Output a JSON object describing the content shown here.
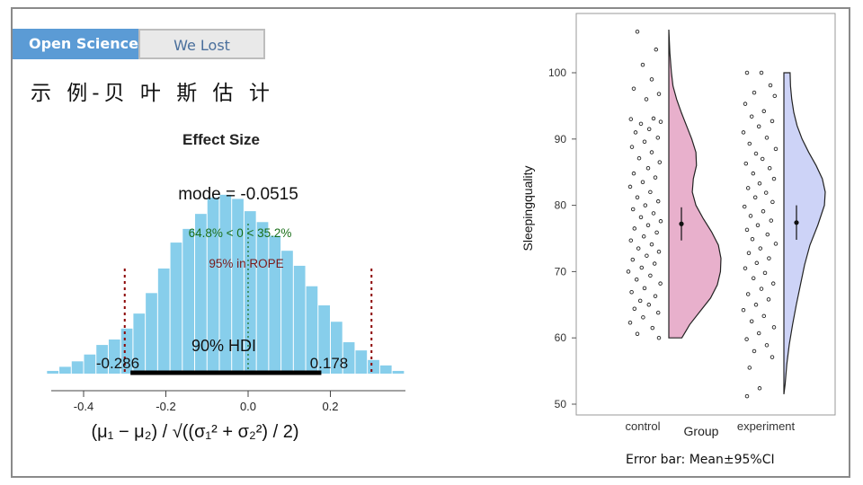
{
  "header": {
    "tab_active": "Open Science",
    "tab_inactive": "We Lost",
    "slide_title": "示 例-贝 叶 斯 估 计"
  },
  "footnote": "Error bar: Mean±95%CI",
  "colors": {
    "tab_active_bg": "#5b9bd5",
    "hist_bar": "#87ceeb",
    "hdi_line": "#000000",
    "rope_line": "#8b0000",
    "control_fill": "#e8b0cc",
    "experiment_fill": "#cdd3f7"
  },
  "chart_data": [
    {
      "type": "bar",
      "title": "Effect Size",
      "annotations": {
        "mode": "mode = -0.0515",
        "direction": "64.8% < 0 < 35.2%",
        "rope": "95% in ROPE",
        "hdi_label": "90% HDI",
        "hdi_low_label": "-0.286",
        "hdi_high_label": "0.178"
      },
      "mode": -0.0515,
      "hdi": [
        -0.286,
        0.178
      ],
      "rope": [
        -0.3,
        0.3
      ],
      "comp_value": 0,
      "xlim": [
        -0.5,
        0.4
      ],
      "x_ticks": [
        "-0.4",
        "-0.2",
        "0.0",
        "0.2"
      ],
      "xlabel": "(μ₁ − μ₂) / √((σ₁² + σ₂²) / 2)",
      "bin_width": 0.03,
      "bin_centers": [
        -0.475,
        -0.445,
        -0.415,
        -0.385,
        -0.355,
        -0.325,
        -0.295,
        -0.265,
        -0.235,
        -0.205,
        -0.175,
        -0.145,
        -0.115,
        -0.085,
        -0.055,
        -0.025,
        0.005,
        0.035,
        0.065,
        0.095,
        0.125,
        0.155,
        0.185,
        0.215,
        0.245,
        0.275,
        0.305,
        0.335,
        0.365
      ],
      "density": [
        0.2,
        0.5,
        0.9,
        1.4,
        2.1,
        2.5,
        3.3,
        4.4,
        5.9,
        7.7,
        9.6,
        10.6,
        11.7,
        12.9,
        13.1,
        12.8,
        11.9,
        11.1,
        10.1,
        9.0,
        7.9,
        6.4,
        5.0,
        3.8,
        2.3,
        1.7,
        1.0,
        0.6,
        0.2
      ]
    },
    {
      "type": "scatter",
      "subtype": "raincloud",
      "xlabel": "Group",
      "ylabel": "Sleepingquality",
      "ylim": [
        50,
        107
      ],
      "y_ticks": [
        50,
        60,
        70,
        80,
        90,
        100
      ],
      "categories": [
        "control",
        "experiment"
      ],
      "groups": [
        {
          "name": "control",
          "mean": 77.2,
          "ci": [
            74.7,
            79.7
          ],
          "density_range": [
            60,
            106.5
          ],
          "density": [
            [
              60,
              0.25
            ],
            [
              62,
              0.4
            ],
            [
              64,
              0.6
            ],
            [
              66,
              0.8
            ],
            [
              68,
              0.93
            ],
            [
              70,
              0.99
            ],
            [
              72,
              1.0
            ],
            [
              74,
              0.95
            ],
            [
              76,
              0.82
            ],
            [
              78,
              0.66
            ],
            [
              80,
              0.52
            ],
            [
              82,
              0.45
            ],
            [
              84,
              0.47
            ],
            [
              86,
              0.53
            ],
            [
              88,
              0.52
            ],
            [
              90,
              0.44
            ],
            [
              92,
              0.34
            ],
            [
              94,
              0.24
            ],
            [
              96,
              0.15
            ],
            [
              98,
              0.08
            ],
            [
              100,
              0.05
            ],
            [
              103,
              0.02
            ],
            [
              106.5,
              0.0
            ]
          ],
          "points": [
            [
              0.3,
              106.2
            ],
            [
              0.82,
              103.5
            ],
            [
              0.45,
              101.2
            ],
            [
              0.7,
              99.0
            ],
            [
              0.2,
              97.6
            ],
            [
              0.9,
              96.8
            ],
            [
              0.55,
              96.0
            ],
            [
              0.75,
              93.1
            ],
            [
              0.12,
              93.0
            ],
            [
              0.95,
              92.6
            ],
            [
              0.4,
              92.3
            ],
            [
              0.63,
              91.5
            ],
            [
              0.25,
              91.0
            ],
            [
              0.87,
              90.2
            ],
            [
              0.5,
              89.6
            ],
            [
              0.15,
              88.8
            ],
            [
              0.7,
              88.0
            ],
            [
              0.35,
              87.1
            ],
            [
              0.92,
              86.5
            ],
            [
              0.6,
              85.6
            ],
            [
              0.2,
              84.8
            ],
            [
              0.8,
              84.2
            ],
            [
              0.45,
              83.5
            ],
            [
              0.1,
              82.8
            ],
            [
              0.66,
              82.0
            ],
            [
              0.3,
              81.2
            ],
            [
              0.88,
              80.6
            ],
            [
              0.52,
              80.0
            ],
            [
              0.18,
              79.4
            ],
            [
              0.75,
              78.8
            ],
            [
              0.4,
              78.2
            ],
            [
              0.95,
              77.6
            ],
            [
              0.6,
              77.0
            ],
            [
              0.22,
              76.5
            ],
            [
              0.84,
              75.9
            ],
            [
              0.48,
              75.3
            ],
            [
              0.12,
              74.7
            ],
            [
              0.7,
              74.1
            ],
            [
              0.33,
              73.5
            ],
            [
              0.9,
              73.0
            ],
            [
              0.56,
              72.4
            ],
            [
              0.17,
              71.8
            ],
            [
              0.78,
              71.2
            ],
            [
              0.42,
              70.6
            ],
            [
              0.05,
              70.0
            ],
            [
              0.66,
              69.4
            ],
            [
              0.28,
              68.8
            ],
            [
              0.94,
              68.2
            ],
            [
              0.5,
              67.5
            ],
            [
              0.14,
              66.9
            ],
            [
              0.8,
              66.3
            ],
            [
              0.38,
              65.6
            ],
            [
              0.62,
              65.0
            ],
            [
              0.22,
              64.4
            ],
            [
              0.88,
              63.8
            ],
            [
              0.46,
              63.1
            ],
            [
              0.1,
              62.3
            ],
            [
              0.72,
              61.5
            ],
            [
              0.3,
              60.6
            ],
            [
              0.9,
              60.0
            ]
          ]
        },
        {
          "name": "experiment",
          "mean": 77.4,
          "ci": [
            74.8,
            80.0
          ],
          "density_range": [
            51.5,
            100
          ],
          "density": [
            [
              51.5,
              0.0
            ],
            [
              53,
              0.03
            ],
            [
              56,
              0.07
            ],
            [
              59,
              0.13
            ],
            [
              62,
              0.21
            ],
            [
              65,
              0.3
            ],
            [
              68,
              0.4
            ],
            [
              71,
              0.5
            ],
            [
              74,
              0.63
            ],
            [
              77,
              0.82
            ],
            [
              80,
              0.98
            ],
            [
              82,
              1.0
            ],
            [
              84,
              0.93
            ],
            [
              86,
              0.78
            ],
            [
              88,
              0.6
            ],
            [
              90,
              0.44
            ],
            [
              92,
              0.32
            ],
            [
              94,
              0.24
            ],
            [
              96,
              0.19
            ],
            [
              98,
              0.16
            ],
            [
              100,
              0.15
            ]
          ],
          "points": [
            [
              0.15,
              100.0
            ],
            [
              0.55,
              100.0
            ],
            [
              0.8,
              98.1
            ],
            [
              0.35,
              97.0
            ],
            [
              0.92,
              96.5
            ],
            [
              0.1,
              95.3
            ],
            [
              0.62,
              94.2
            ],
            [
              0.28,
              93.4
            ],
            [
              0.85,
              92.7
            ],
            [
              0.48,
              91.9
            ],
            [
              0.05,
              91.0
            ],
            [
              0.7,
              90.2
            ],
            [
              0.22,
              89.3
            ],
            [
              0.95,
              88.5
            ],
            [
              0.4,
              87.8
            ],
            [
              0.58,
              87.0
            ],
            [
              0.12,
              86.3
            ],
            [
              0.78,
              85.6
            ],
            [
              0.32,
              84.8
            ],
            [
              0.9,
              84.0
            ],
            [
              0.5,
              83.3
            ],
            [
              0.18,
              82.6
            ],
            [
              0.68,
              81.9
            ],
            [
              0.38,
              81.2
            ],
            [
              0.86,
              80.5
            ],
            [
              0.08,
              79.8
            ],
            [
              0.6,
              79.1
            ],
            [
              0.25,
              78.4
            ],
            [
              0.82,
              77.7
            ],
            [
              0.45,
              77.0
            ],
            [
              0.15,
              76.3
            ],
            [
              0.72,
              75.6
            ],
            [
              0.3,
              74.9
            ],
            [
              0.95,
              74.2
            ],
            [
              0.52,
              73.5
            ],
            [
              0.2,
              72.8
            ],
            [
              0.76,
              72.0
            ],
            [
              0.42,
              71.3
            ],
            [
              0.1,
              70.5
            ],
            [
              0.65,
              69.8
            ],
            [
              0.33,
              69.0
            ],
            [
              0.88,
              68.2
            ],
            [
              0.55,
              67.4
            ],
            [
              0.18,
              66.6
            ],
            [
              0.75,
              65.8
            ],
            [
              0.4,
              65.0
            ],
            [
              0.05,
              64.2
            ],
            [
              0.62,
              63.3
            ],
            [
              0.28,
              62.5
            ],
            [
              0.9,
              61.6
            ],
            [
              0.48,
              60.7
            ],
            [
              0.14,
              59.8
            ],
            [
              0.7,
              58.9
            ],
            [
              0.35,
              58.0
            ],
            [
              0.85,
              57.1
            ],
            [
              0.22,
              55.5
            ],
            [
              0.5,
              52.4
            ],
            [
              0.15,
              51.2
            ]
          ]
        }
      ]
    }
  ]
}
